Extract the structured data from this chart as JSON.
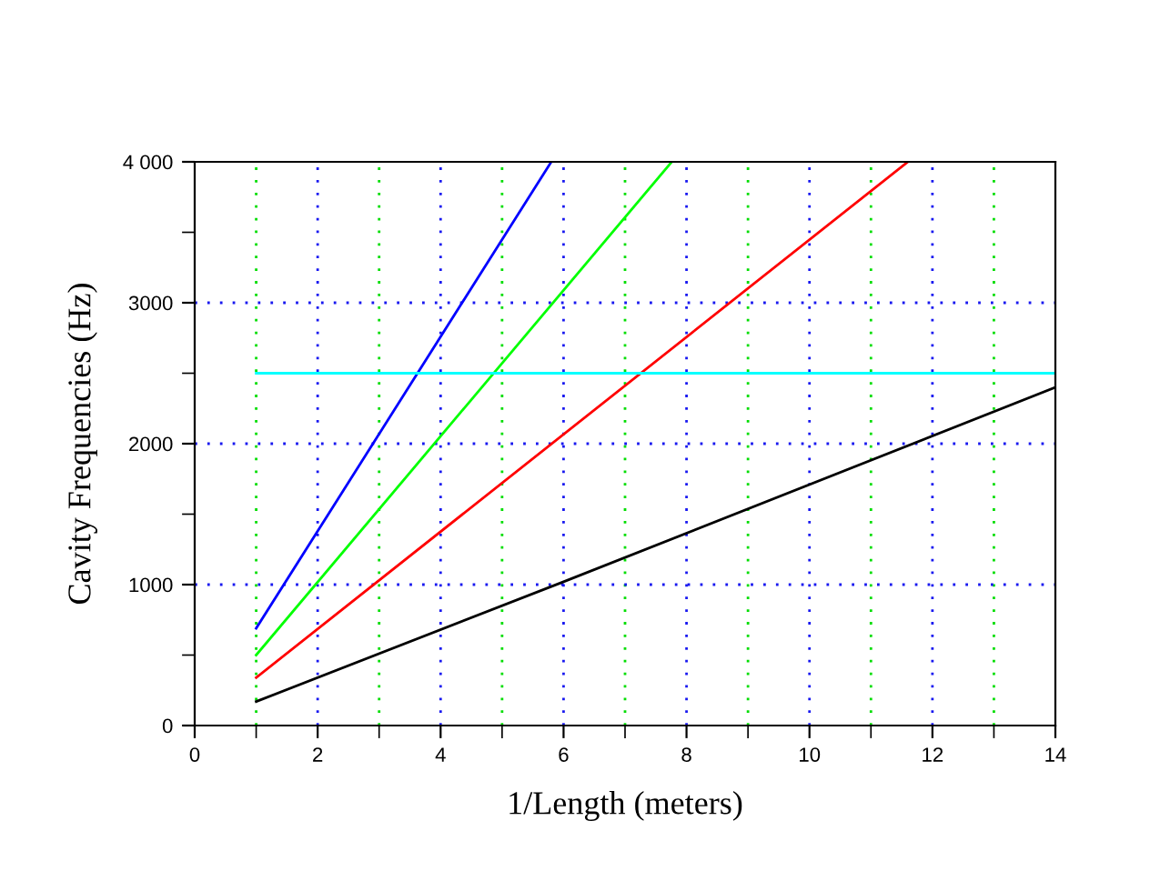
{
  "chart_data": {
    "type": "line",
    "xlabel": "1/Length (meters)",
    "ylabel": "Cavity Frequencies (Hz)",
    "series": [
      {
        "color": "#000000",
        "x": [
          1,
          6,
          14
        ],
        "values": [
          170,
          1020,
          2400
        ]
      },
      {
        "color": "#ff0000",
        "x": [
          1,
          11.6
        ],
        "values": [
          340,
          4000
        ]
      },
      {
        "color": "#00ff00",
        "x": [
          1,
          7.76
        ],
        "values": [
          500,
          4000
        ]
      },
      {
        "color": "#0000ff",
        "x": [
          1,
          5.8
        ],
        "values": [
          690,
          4000
        ]
      },
      {
        "color": "#00ffff",
        "x": [
          1,
          14
        ],
        "values": [
          2500,
          2500
        ]
      }
    ],
    "xlim": [
      0,
      14
    ],
    "ylim": [
      0,
      4000
    ],
    "xticks": [
      0,
      {
        "value": 1,
        "label": null
      },
      2,
      {
        "value": 3,
        "label": null
      },
      4,
      {
        "value": 5,
        "label": null
      },
      6,
      {
        "value": 7,
        "label": null
      },
      8,
      {
        "value": 9,
        "label": null
      },
      10,
      {
        "value": 11,
        "label": null
      },
      12,
      {
        "value": 13,
        "label": null
      },
      14
    ],
    "yticks": [
      0,
      {
        "value": 500,
        "label": null
      },
      1000,
      {
        "value": 1500,
        "label": null
      },
      2000,
      {
        "value": 2500,
        "label": null
      },
      3000,
      {
        "value": 3500,
        "label": null
      },
      {
        "value": 4000,
        "label": "4 000"
      }
    ],
    "grid": true,
    "marker": "none",
    "line_style": "solid"
  }
}
